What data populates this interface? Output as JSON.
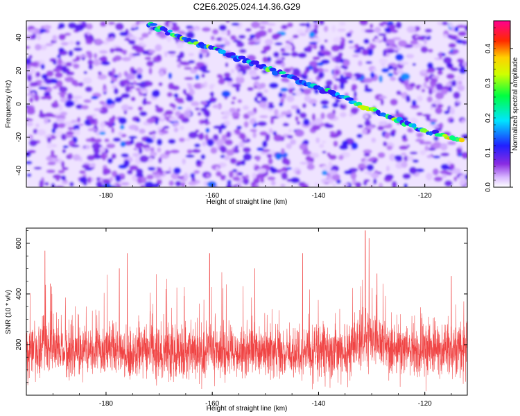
{
  "title": "C2E6.2025.024.14.36.G29",
  "chart_data": [
    {
      "type": "heatmap",
      "xlabel": "Height of straight line (km)",
      "ylabel": "Frequency (Hz)",
      "xlim": [
        -195,
        -112
      ],
      "ylim": [
        -50,
        50
      ],
      "x_ticks": [
        -180,
        -160,
        -140,
        -120
      ],
      "y_ticks": [
        -40,
        -20,
        0,
        20,
        40
      ],
      "colorbar": {
        "label": "Normalized spectral amplitude",
        "range": [
          0.0,
          0.48
        ],
        "ticks": [
          0.0,
          0.1,
          0.2,
          0.3,
          0.4
        ],
        "colors": [
          "#ffffff",
          "#8a2be2",
          "#0000ff",
          "#00ffff",
          "#00ff00",
          "#ffff00",
          "#ff0000",
          "#ff00ff"
        ]
      },
      "trace": {
        "x": [
          -172,
          -160,
          -150,
          -141,
          -131,
          -125,
          -120,
          -113
        ],
        "y": [
          48,
          33,
          22,
          11,
          -2,
          -10,
          -16,
          -22
        ]
      }
    },
    {
      "type": "line",
      "xlabel": "Height of straight line (km)",
      "ylabel": "SNR (10 * v/v)",
      "xlim": [
        -195,
        -112
      ],
      "ylim": [
        0,
        660
      ],
      "x_ticks": [
        -180,
        -160,
        -140,
        -120
      ],
      "y_ticks": [
        200,
        400,
        600
      ],
      "series": [
        {
          "color": "#ee3030",
          "x": [
            -195,
            -190,
            -185,
            -180,
            -175,
            -170,
            -165,
            -160,
            -155,
            -150,
            -145,
            -140,
            -135,
            -131,
            -128,
            -125,
            -120,
            -115,
            -112
          ],
          "y": [
            180,
            190,
            170,
            185,
            160,
            175,
            170,
            180,
            165,
            185,
            160,
            180,
            175,
            230,
            210,
            170,
            180,
            175,
            185
          ]
        }
      ]
    }
  ]
}
